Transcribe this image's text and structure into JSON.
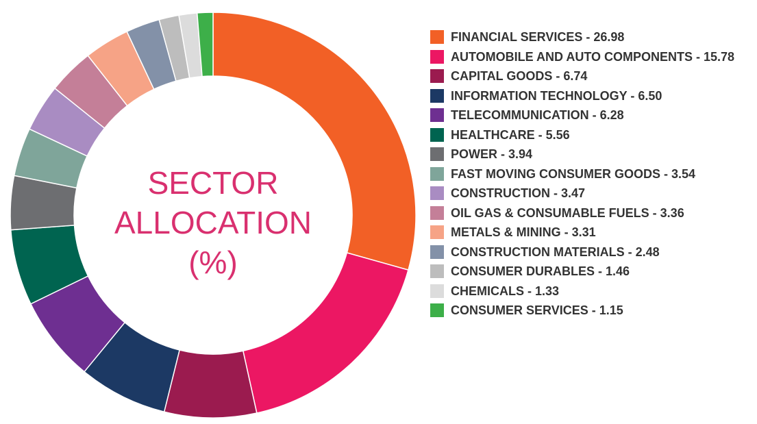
{
  "chart_data": {
    "type": "donut",
    "title": "SECTOR ALLOCATION (%)",
    "categories": [
      "FINANCIAL SERVICES - 26.98",
      "AUTOMOBILE AND AUTO COMPONENTS - 15.78",
      "CAPITAL GOODS - 6.74",
      "INFORMATION TECHNOLOGY - 6.50",
      "TELECOMMUNICATION - 6.28",
      "HEALTHCARE - 5.56",
      "POWER - 3.94",
      "FAST MOVING CONSUMER GOODS - 3.54",
      "CONSTRUCTION - 3.47",
      "OIL GAS & CONSUMABLE FUELS - 3.36",
      "METALS & MINING - 3.31",
      "CONSTRUCTION MATERIALS - 2.48",
      "CONSUMER DURABLES - 1.46",
      "CHEMICALS - 1.33",
      "CONSUMER SERVICES - 1.15"
    ],
    "values": [
      26.98,
      15.78,
      6.74,
      6.5,
      6.28,
      5.56,
      3.94,
      3.54,
      3.47,
      3.36,
      3.31,
      2.48,
      1.46,
      1.33,
      1.15
    ],
    "colors": [
      "#f26026",
      "#ec1763",
      "#9b1b4f",
      "#1c3964",
      "#6e2f91",
      "#006450",
      "#6d6e71",
      "#7fa59a",
      "#a98cc2",
      "#c47f98",
      "#f6a386",
      "#8391a8",
      "#bdbdbd",
      "#dcdcdc",
      "#3daf49"
    ]
  }
}
